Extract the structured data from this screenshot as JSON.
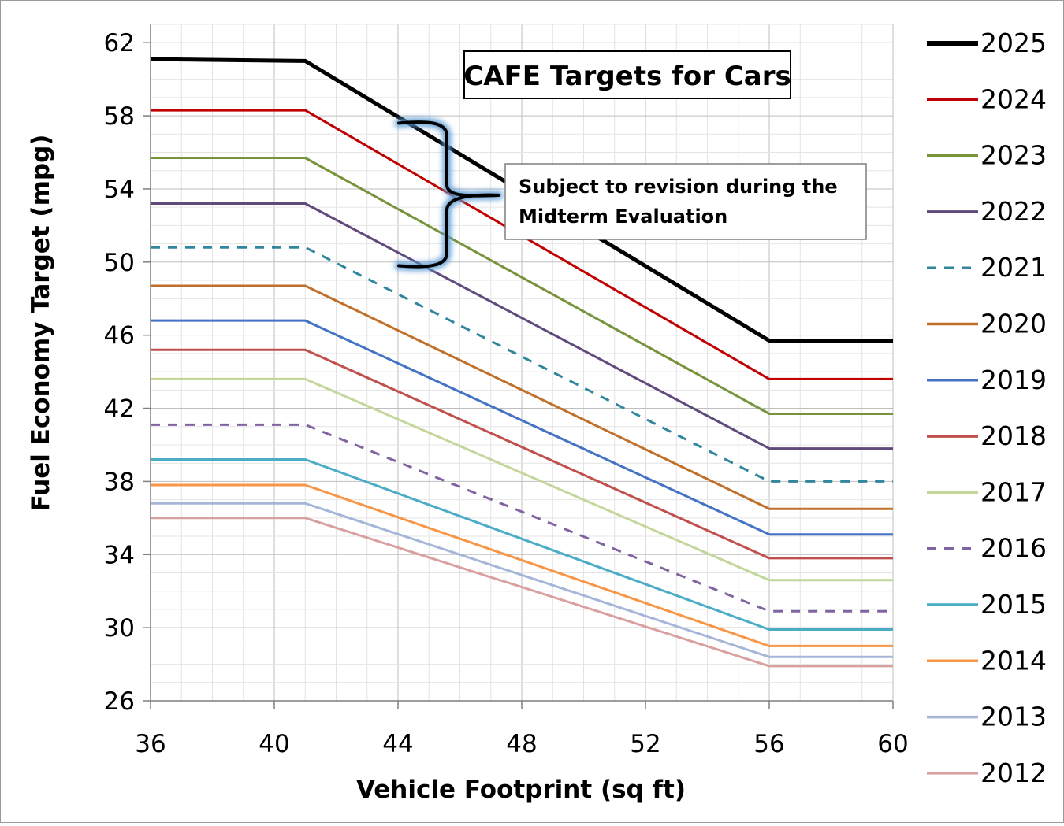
{
  "chart_data": {
    "type": "line",
    "title": "CAFE Targets for Cars",
    "xlabel": "Vehicle Footprint (sq ft)",
    "ylabel": "Fuel Economy Target (mpg)",
    "xlim": [
      36,
      60
    ],
    "ylim": [
      26,
      63
    ],
    "x_ticks": [
      36,
      40,
      44,
      48,
      52,
      56,
      60
    ],
    "y_ticks": [
      26,
      30,
      34,
      38,
      42,
      46,
      50,
      54,
      58,
      62
    ],
    "x_minor_step": 1,
    "y_minor_step": 1,
    "grid": true,
    "legend_position": "right",
    "x": [
      36,
      41,
      56,
      60
    ],
    "series": [
      {
        "name": "2025",
        "color": "#000000",
        "dashed": false,
        "width": 5,
        "values": [
          61.1,
          61.0,
          45.7,
          45.7
        ]
      },
      {
        "name": "2024",
        "color": "#c00000",
        "dashed": false,
        "width": 3,
        "values": [
          58.3,
          58.3,
          43.6,
          43.6
        ]
      },
      {
        "name": "2023",
        "color": "#77933c",
        "dashed": false,
        "width": 3,
        "values": [
          55.7,
          55.7,
          41.7,
          41.7
        ]
      },
      {
        "name": "2022",
        "color": "#604a7b",
        "dashed": false,
        "width": 3,
        "values": [
          53.2,
          53.2,
          39.8,
          39.8
        ]
      },
      {
        "name": "2021",
        "color": "#31859c",
        "dashed": true,
        "width": 3,
        "values": [
          50.8,
          50.8,
          38.0,
          38.0
        ]
      },
      {
        "name": "2020",
        "color": "#c0702a",
        "dashed": false,
        "width": 3,
        "values": [
          48.7,
          48.7,
          36.5,
          36.5
        ]
      },
      {
        "name": "2019",
        "color": "#4472c4",
        "dashed": false,
        "width": 3,
        "values": [
          46.8,
          46.8,
          35.1,
          35.1
        ]
      },
      {
        "name": "2018",
        "color": "#c0504d",
        "dashed": false,
        "width": 3,
        "values": [
          45.2,
          45.2,
          33.8,
          33.8
        ]
      },
      {
        "name": "2017",
        "color": "#c3d69b",
        "dashed": false,
        "width": 3,
        "values": [
          43.6,
          43.6,
          32.6,
          32.6
        ]
      },
      {
        "name": "2016",
        "color": "#8064a2",
        "dashed": true,
        "width": 3,
        "values": [
          41.1,
          41.1,
          30.9,
          30.9
        ]
      },
      {
        "name": "2015",
        "color": "#4bacc6",
        "dashed": false,
        "width": 3,
        "values": [
          39.2,
          39.2,
          29.9,
          29.9
        ]
      },
      {
        "name": "2014",
        "color": "#f79646",
        "dashed": false,
        "width": 3,
        "values": [
          37.8,
          37.8,
          29.0,
          29.0
        ]
      },
      {
        "name": "2013",
        "color": "#a5b6d8",
        "dashed": false,
        "width": 3,
        "values": [
          36.8,
          36.8,
          28.4,
          28.4
        ]
      },
      {
        "name": "2012",
        "color": "#d9a0a0",
        "dashed": false,
        "width": 3,
        "values": [
          36.0,
          36.0,
          27.9,
          27.9
        ]
      }
    ],
    "annotations": [
      {
        "text_lines": [
          "Subject to revision during the",
          "Midterm Evaluation"
        ],
        "bracket_color": "#000000",
        "glow_color": "#5b9bd5"
      }
    ]
  }
}
